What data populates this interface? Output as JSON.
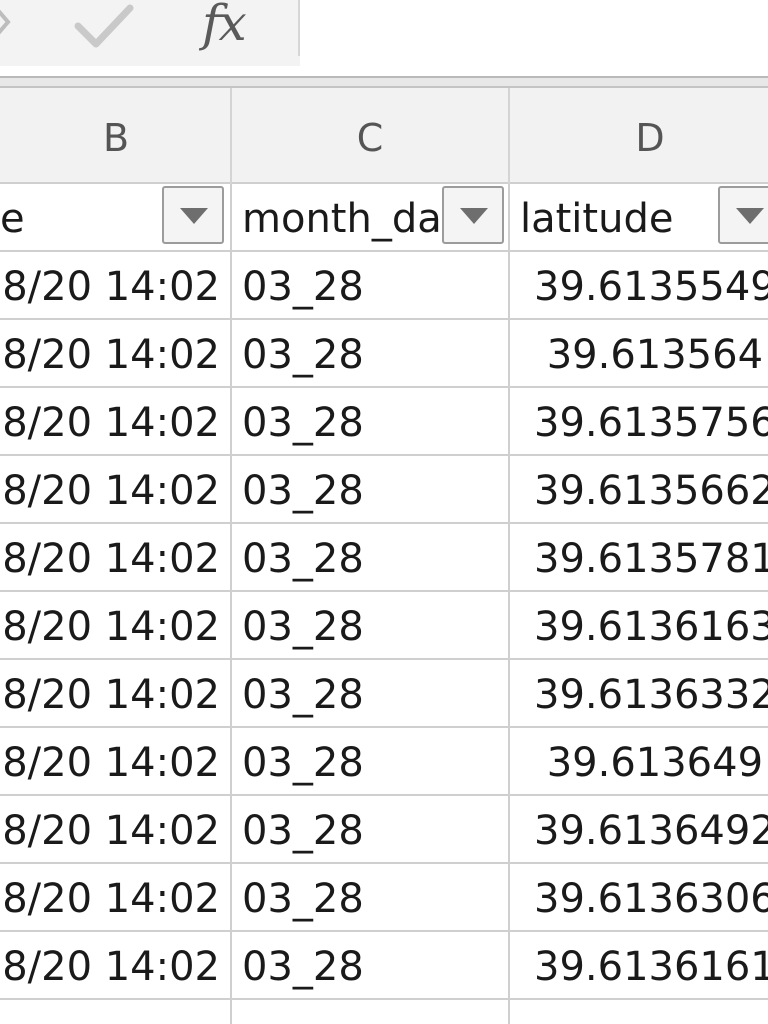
{
  "formula_bar": {
    "fx_label": "fx",
    "formula_value": ""
  },
  "columns": [
    "B",
    "C",
    "D"
  ],
  "header_row": {
    "b": "e",
    "c": "month_da",
    "d": "latitude"
  },
  "rows": [
    {
      "b": "8/20 14:02",
      "c": "03_28",
      "d": "39.6135549"
    },
    {
      "b": "8/20 14:02",
      "c": "03_28",
      "d": " 39.613564"
    },
    {
      "b": "8/20 14:02",
      "c": "03_28",
      "d": "39.6135756"
    },
    {
      "b": "8/20 14:02",
      "c": "03_28",
      "d": "39.6135662"
    },
    {
      "b": "8/20 14:02",
      "c": "03_28",
      "d": "39.6135781"
    },
    {
      "b": "8/20 14:02",
      "c": "03_28",
      "d": "39.6136163"
    },
    {
      "b": "8/20 14:02",
      "c": "03_28",
      "d": "39.6136332"
    },
    {
      "b": "8/20 14:02",
      "c": "03_28",
      "d": " 39.613649"
    },
    {
      "b": "8/20 14:02",
      "c": "03_28",
      "d": "39.6136492"
    },
    {
      "b": "8/20 14:02",
      "c": "03_28",
      "d": "39.6136306"
    },
    {
      "b": "8/20 14:02",
      "c": "03_28",
      "d": "39.6136161"
    }
  ],
  "colors": {
    "grid_line": "#cfcfcf",
    "header_bg": "#f2f2f2",
    "text": "#1a1a1a"
  }
}
